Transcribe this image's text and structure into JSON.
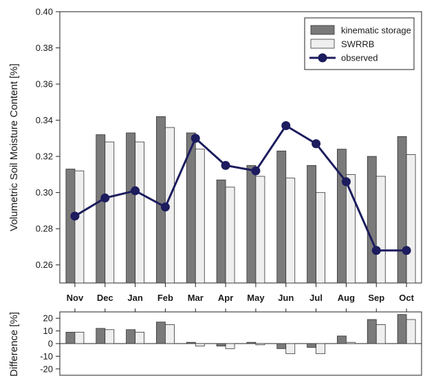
{
  "chart_data": [
    {
      "type": "bar",
      "title": "",
      "xlabel": "",
      "ylabel": "Volumetric Soil Moisture Content [%]",
      "ylim": [
        0.25,
        0.4
      ],
      "yticks": [
        "0.26",
        "0.28",
        "0.30",
        "0.32",
        "0.34",
        "0.36",
        "0.38",
        "0.40"
      ],
      "categories": [
        "Nov",
        "Dec",
        "Jan",
        "Feb",
        "Mar",
        "Apr",
        "May",
        "Jun",
        "Jul",
        "Aug",
        "Sep",
        "Oct"
      ],
      "legend_position": "top-right",
      "series": [
        {
          "name": "kinematic storage",
          "kind": "bar",
          "color": "#7a7a7a",
          "values": [
            0.313,
            0.332,
            0.333,
            0.342,
            0.333,
            0.307,
            0.315,
            0.323,
            0.315,
            0.324,
            0.32,
            0.331
          ]
        },
        {
          "name": "SWRRB",
          "kind": "bar",
          "color": "#efefef",
          "values": [
            0.312,
            0.328,
            0.328,
            0.336,
            0.324,
            0.303,
            0.309,
            0.308,
            0.3,
            0.31,
            0.309,
            0.321
          ]
        },
        {
          "name": "observed",
          "kind": "line",
          "color": "#1c1c5e",
          "values": [
            0.287,
            0.297,
            0.301,
            0.292,
            0.33,
            0.315,
            0.312,
            0.337,
            0.327,
            0.306,
            0.268,
            0.268
          ]
        }
      ]
    },
    {
      "type": "bar",
      "title": "",
      "xlabel": "",
      "ylabel": "Difference [%]",
      "ylim": [
        -25,
        25
      ],
      "yticks": [
        "-20",
        "-10",
        "0",
        "10",
        "20"
      ],
      "categories": [
        "Nov",
        "Dec",
        "Jan",
        "Feb",
        "Mar",
        "Apr",
        "May",
        "Jun",
        "Jul",
        "Aug",
        "Sep",
        "Oct"
      ],
      "series": [
        {
          "name": "kinematic storage",
          "kind": "bar",
          "color": "#7a7a7a",
          "values": [
            9,
            12,
            11,
            17,
            1,
            -2,
            1,
            -4,
            -3,
            6,
            19,
            23
          ]
        },
        {
          "name": "SWRRB",
          "kind": "bar",
          "color": "#efefef",
          "values": [
            9,
            11,
            9,
            15,
            -2,
            -4,
            -1,
            -8,
            -8,
            1,
            15,
            19
          ]
        }
      ]
    }
  ]
}
